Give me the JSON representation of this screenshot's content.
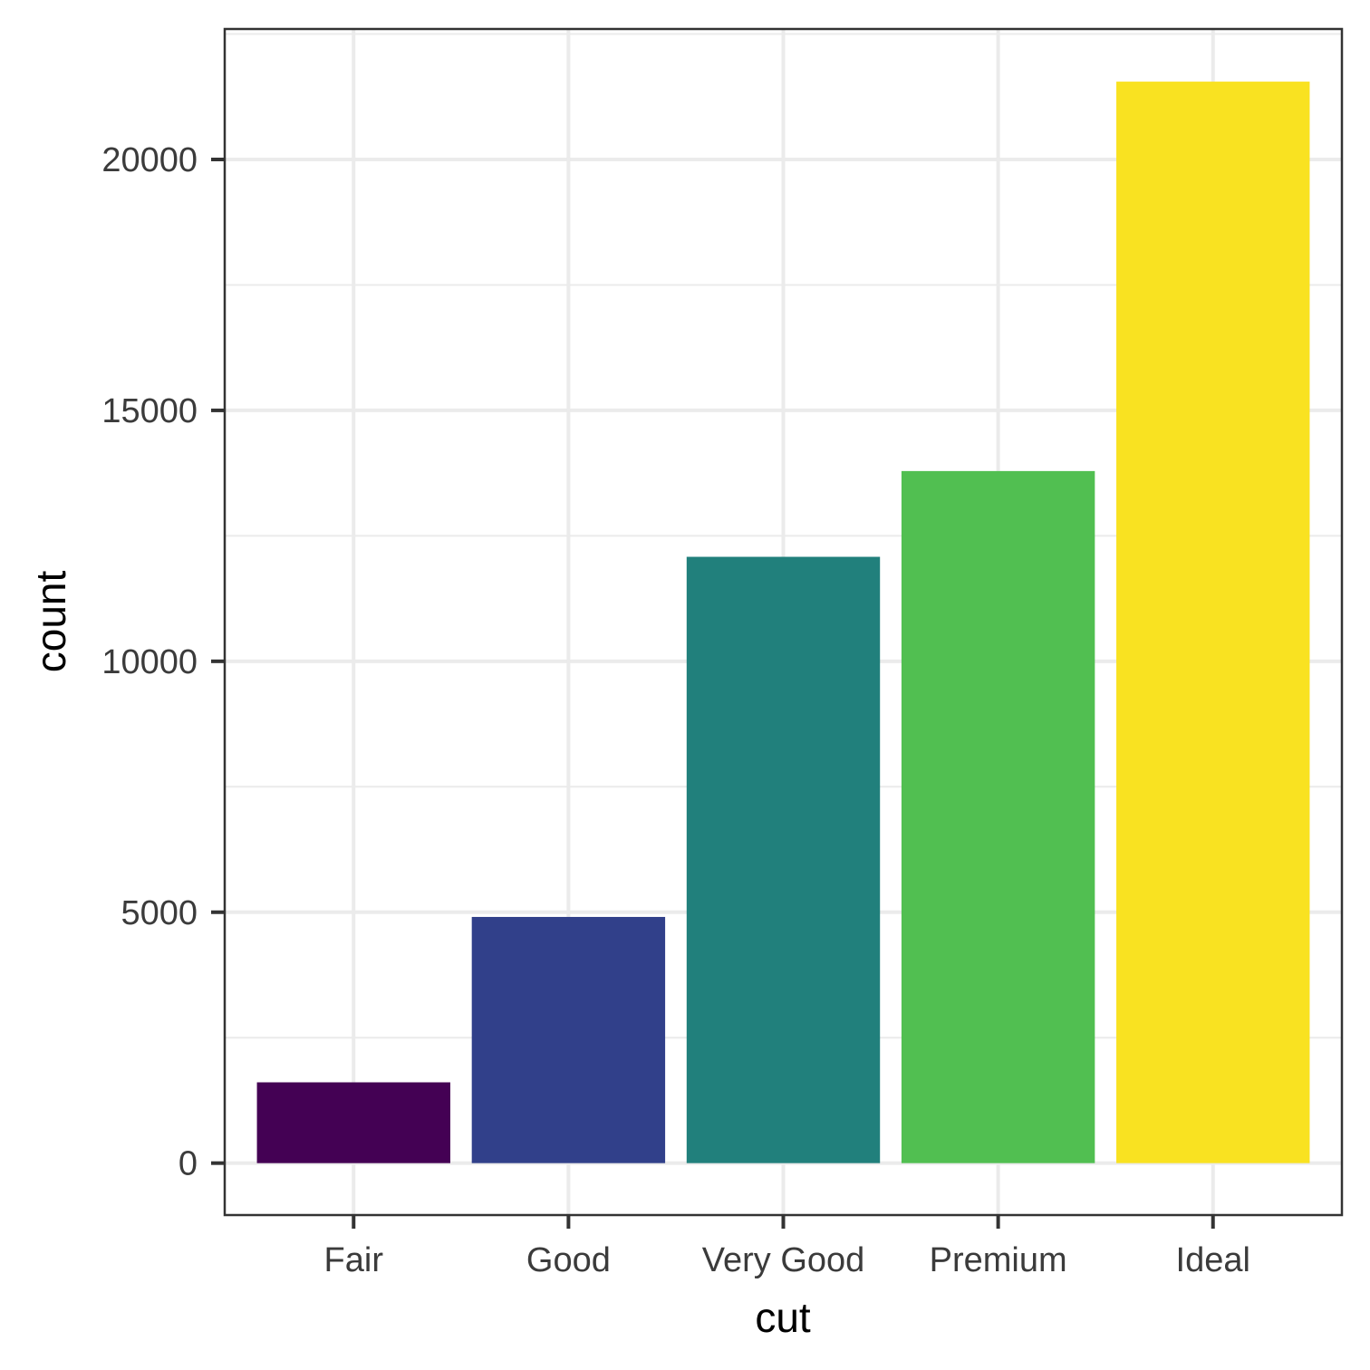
{
  "chart_data": {
    "type": "bar",
    "xlabel": "cut",
    "ylabel": "count",
    "categories": [
      "Fair",
      "Good",
      "Very Good",
      "Premium",
      "Ideal"
    ],
    "values": [
      1610,
      4906,
      12082,
      13791,
      21551
    ],
    "colors": [
      "#440154",
      "#31408a",
      "#21807c",
      "#51bf51",
      "#f9e221"
    ],
    "yticks": [
      0,
      5000,
      10000,
      15000,
      20000
    ],
    "ytick_labels": [
      "0",
      "5000",
      "10000",
      "15000",
      "20000"
    ],
    "ylim": [
      -1035,
      22600
    ],
    "grid": true,
    "legend": "none"
  }
}
